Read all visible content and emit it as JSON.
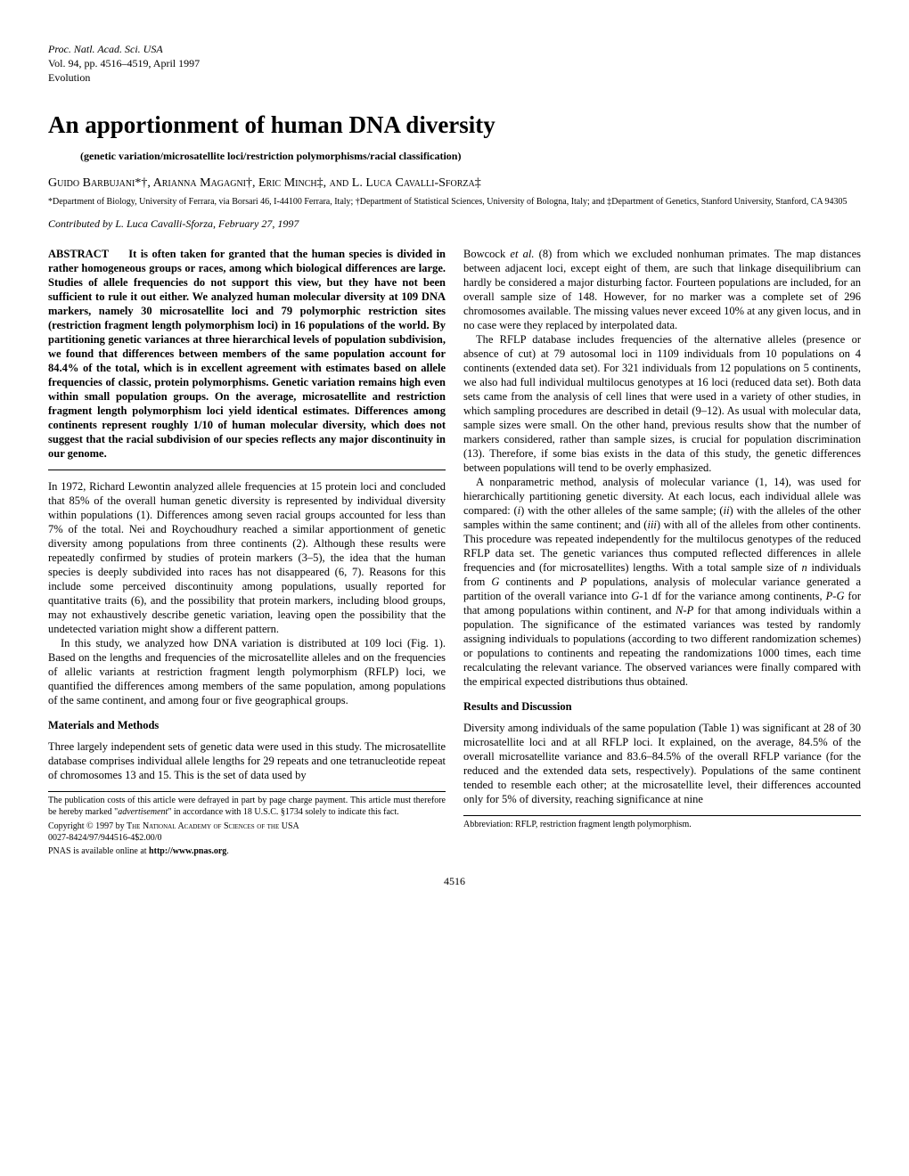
{
  "journal": {
    "line1": "Proc. Natl. Acad. Sci. USA",
    "line2": "Vol. 94, pp. 4516–4519, April 1997",
    "line3": "Evolution"
  },
  "title": "An apportionment of human DNA diversity",
  "subtitle": "(genetic variation/microsatellite loci/restriction polymorphisms/racial classification)",
  "authors": "Guido Barbujani*†, Arianna Magagni†, Eric Minch‡, and L. Luca Cavalli-Sforza‡",
  "affiliations": "*Department of Biology, University of Ferrara, via Borsari 46, I-44100 Ferrara, Italy; †Department of Statistical Sciences, University of Bologna, Italy; and ‡Department of Genetics, Stanford University, Stanford, CA 94305",
  "contributed": "Contributed by L. Luca Cavalli-Sforza, February 27, 1997",
  "abstract": {
    "label": "ABSTRACT",
    "text": "It is often taken for granted that the human species is divided in rather homogeneous groups or races, among which biological differences are large. Studies of allele frequencies do not support this view, but they have not been sufficient to rule it out either. We analyzed human molecular diversity at 109 DNA markers, namely 30 microsatellite loci and 79 polymorphic restriction sites (restriction fragment length polymorphism loci) in 16 populations of the world. By partitioning genetic variances at three hierarchical levels of population subdivision, we found that differences between members of the same population account for 84.4% of the total, which is in excellent agreement with estimates based on allele frequencies of classic, protein polymorphisms. Genetic variation remains high even within small population groups. On the average, microsatellite and restriction fragment length polymorphism loci yield identical estimates. Differences among continents represent roughly 1/10 of human molecular diversity, which does not suggest that the racial subdivision of our species reflects any major discontinuity in our genome."
  },
  "intro": {
    "p1": "In 1972, Richard Lewontin analyzed allele frequencies at 15 protein loci and concluded that 85% of the overall human genetic diversity is represented by individual diversity within populations (1). Differences among seven racial groups accounted for less than 7% of the total. Nei and Roychoudhury reached a similar apportionment of genetic diversity among populations from three continents (2). Although these results were repeatedly confirmed by studies of protein markers (3–5), the idea that the human species is deeply subdivided into races has not disappeared (6, 7). Reasons for this include some perceived discontinuity among populations, usually reported for quantitative traits (6), and the possibility that protein markers, including blood groups, may not exhaustively describe genetic variation, leaving open the possibility that the undetected variation might show a different pattern.",
    "p2": "In this study, we analyzed how DNA variation is distributed at 109 loci (Fig. 1). Based on the lengths and frequencies of the microsatellite alleles and on the frequencies of allelic variants at restriction fragment length polymorphism (RFLP) loci, we quantified the differences among members of the same population, among populations of the same continent, and among four or five geographical groups."
  },
  "materials": {
    "heading": "Materials and Methods",
    "p1": "Three largely independent sets of genetic data were used in this study. The microsatellite database comprises individual allele lengths for 29 repeats and one tetranucleotide repeat of chromosomes 13 and 15. This is the set of data used by"
  },
  "col2": {
    "p1": "Bowcock et al. (8) from which we excluded nonhuman primates. The map distances between adjacent loci, except eight of them, are such that linkage disequilibrium can hardly be considered a major disturbing factor. Fourteen populations are included, for an overall sample size of 148. However, for no marker was a complete set of 296 chromosomes available. The missing values never exceed 10% at any given locus, and in no case were they replaced by interpolated data.",
    "p2": "The RFLP database includes frequencies of the alternative alleles (presence or absence of cut) at 79 autosomal loci in 1109 individuals from 10 populations on 4 continents (extended data set). For 321 individuals from 12 populations on 5 continents, we also had full individual multilocus genotypes at 16 loci (reduced data set). Both data sets came from the analysis of cell lines that were used in a variety of other studies, in which sampling procedures are described in detail (9–12). As usual with molecular data, sample sizes were small. On the other hand, previous results show that the number of markers considered, rather than sample sizes, is crucial for population discrimination (13). Therefore, if some bias exists in the data of this study, the genetic differences between populations will tend to be overly emphasized.",
    "p3a": "A nonparametric method, analysis of molecular variance (1, 14), was used for hierarchically partitioning genetic diversity. At each locus, each individual allele was compared: (",
    "p3b": ") with the other alleles of the same sample; (",
    "p3c": ") with the alleles of the other samples within the same continent; and (",
    "p3d": ") with all of the alleles from other continents. This procedure was repeated independently for the multilocus genotypes of the reduced RFLP data set. The genetic variances thus computed reflected differences in allele frequencies and (for microsatellites) lengths. With a total sample size of ",
    "p3e": " individuals from ",
    "p3f": " continents and ",
    "p3g": " populations, analysis of molecular variance generated a partition of the overall variance into ",
    "p3h": "-1 df for the variance among continents, ",
    "p3i": " for that among populations within continent, and ",
    "p3j": " for that among individuals within a population. The significance of the estimated variances was tested by randomly assigning individuals to populations (according to two different randomization schemes) or populations to continents and repeating the randomizations 1000 times, each time recalculating the relevant variance. The observed variances were finally compared with the empirical expected distributions thus obtained.",
    "i": "i",
    "ii": "ii",
    "iii": "iii",
    "n": "n",
    "G": "G",
    "P": "P",
    "PG": "P-G",
    "NP": "N-P"
  },
  "results": {
    "heading": "Results and Discussion",
    "p1": "Diversity among individuals of the same population (Table 1) was significant at 28 of 30 microsatellite loci and at all RFLP loci. It explained, on the average, 84.5% of the overall microsatellite variance and 83.6–84.5% of the overall RFLP variance (for the reduced and the extended data sets, respectively). Populations of the same continent tended to resemble each other; at the microsatellite level, their differences accounted only for 5% of diversity, reaching significance at nine"
  },
  "footnotes": {
    "pub_costs": "The publication costs of this article were defrayed in part by page charge payment. This article must therefore be hereby marked \"",
    "advertisement": "advertisement",
    "pub_costs2": "\" in accordance with 18 U.S.C. §1734 solely to indicate this fact.",
    "copyright": "Copyright © 1997 by The National Academy of Sciences of the USA 0027-8424/97/944516-4$2.00/0",
    "pnas_online_pre": "PNAS is available online at ",
    "pnas_online_url": "http://www.pnas.org",
    "abbrev": "Abbreviation: RFLP, restriction fragment length polymorphism."
  },
  "page_number": "4516"
}
